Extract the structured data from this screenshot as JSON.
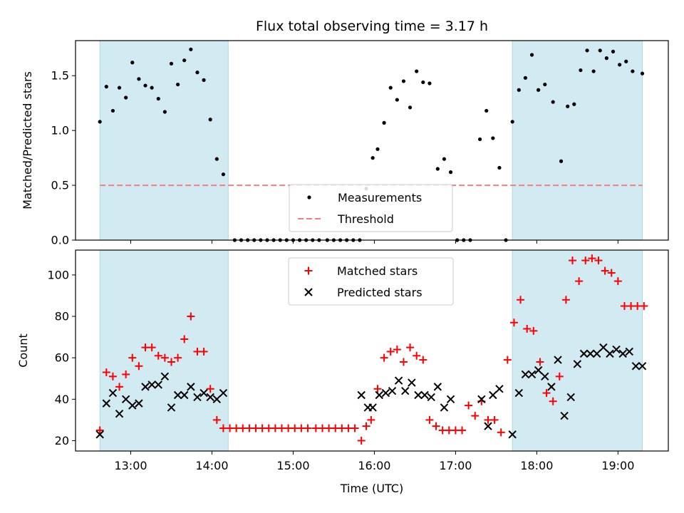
{
  "chart_data": {
    "title": "Flux total observing time = 3.17 h",
    "xlabel": "Time (UTC)",
    "x_unit": "hours UTC",
    "xlim": [
      12.32,
      19.62
    ],
    "x_ticks": [
      {
        "value": 13,
        "label": "13:00"
      },
      {
        "value": 14,
        "label": "14:00"
      },
      {
        "value": 15,
        "label": "15:00"
      },
      {
        "value": 16,
        "label": "16:00"
      },
      {
        "value": 17,
        "label": "17:00"
      },
      {
        "value": 18,
        "label": "18:00"
      },
      {
        "value": 19,
        "label": "19:00"
      }
    ],
    "shaded_intervals": [
      [
        12.62,
        14.2
      ],
      [
        17.7,
        19.3
      ]
    ],
    "shade_color": "#add8e6",
    "panels": [
      {
        "type": "scatter",
        "ylabel": "Matched/Predicted stars",
        "ylim": [
          0,
          1.82
        ],
        "yticks": [
          0.0,
          0.5,
          1.0,
          1.5
        ],
        "ytick_labels": [
          "0.0",
          "0.5",
          "1.0",
          "1.5"
        ],
        "legend_position": "lower center",
        "series": [
          {
            "name": "Measurements",
            "marker": "dot",
            "color": "#000000",
            "x": [
              12.62,
              12.7,
              12.78,
              12.86,
              12.94,
              13.02,
              13.1,
              13.18,
              13.26,
              13.34,
              13.42,
              13.5,
              13.58,
              13.66,
              13.74,
              13.82,
              13.9,
              13.98,
              14.06,
              14.14,
              14.28,
              14.36,
              14.44,
              14.52,
              14.6,
              14.68,
              14.76,
              14.84,
              14.92,
              15.0,
              15.08,
              15.16,
              15.24,
              15.32,
              15.42,
              15.5,
              15.58,
              15.66,
              15.74,
              15.82,
              15.9,
              15.98,
              16.04,
              16.12,
              16.2,
              16.28,
              16.36,
              16.44,
              16.52,
              16.6,
              16.68,
              16.78,
              16.86,
              16.94,
              17.02,
              17.1,
              17.18,
              17.3,
              17.38,
              17.46,
              17.54,
              17.62,
              17.7,
              17.78,
              17.86,
              17.94,
              18.02,
              18.1,
              18.2,
              18.3,
              18.38,
              18.46,
              18.54,
              18.62,
              18.7,
              18.78,
              18.86,
              18.94,
              19.02,
              19.1,
              19.18,
              19.3
            ],
            "y": [
              1.08,
              1.4,
              1.18,
              1.39,
              1.3,
              1.62,
              1.47,
              1.41,
              1.39,
              1.29,
              1.17,
              1.61,
              1.42,
              1.64,
              1.74,
              1.53,
              1.46,
              1.1,
              0.74,
              0.6,
              0,
              0,
              0,
              0,
              0,
              0,
              0,
              0,
              0,
              0,
              0,
              0,
              0,
              0,
              0,
              0,
              0,
              0,
              0,
              0,
              0.47,
              0.75,
              0.83,
              1.07,
              1.39,
              1.28,
              1.45,
              1.21,
              1.54,
              1.44,
              1.43,
              0.65,
              0.74,
              0.62,
              0,
              0,
              0,
              0.92,
              1.18,
              0.93,
              0.66,
              0,
              1.08,
              1.37,
              1.48,
              1.69,
              1.37,
              1.42,
              1.26,
              0.72,
              1.22,
              1.24,
              1.55,
              1.73,
              1.54,
              1.73,
              1.66,
              1.72,
              1.6,
              1.63,
              1.54,
              1.52
            ]
          },
          {
            "name": "Threshold",
            "marker": "dashed-line",
            "color": "#f08080",
            "value": 0.5
          }
        ]
      },
      {
        "type": "scatter",
        "ylabel": "Count",
        "ylim": [
          15,
          112
        ],
        "yticks": [
          20,
          40,
          60,
          80,
          100
        ],
        "ytick_labels": [
          "20",
          "40",
          "60",
          "80",
          "100"
        ],
        "legend_position": "upper center",
        "series": [
          {
            "name": "Matched stars",
            "marker": "plus",
            "color": "#ff0000",
            "x": [
              12.62,
              12.7,
              12.78,
              12.86,
              12.94,
              13.02,
              13.1,
              13.18,
              13.26,
              13.34,
              13.42,
              13.5,
              13.58,
              13.66,
              13.74,
              13.82,
              13.9,
              13.98,
              14.06,
              14.14,
              14.22,
              14.3,
              14.38,
              14.46,
              14.54,
              14.62,
              14.7,
              14.78,
              14.86,
              14.94,
              15.02,
              15.1,
              15.18,
              15.28,
              15.36,
              15.44,
              15.52,
              15.6,
              15.68,
              15.76,
              15.84,
              15.9,
              15.96,
              16.04,
              16.12,
              16.2,
              16.28,
              16.36,
              16.44,
              16.52,
              16.6,
              16.68,
              16.76,
              16.84,
              16.92,
              17.0,
              17.08,
              17.16,
              17.24,
              17.32,
              17.4,
              17.48,
              17.56,
              17.64,
              17.72,
              17.8,
              17.88,
              17.96,
              18.04,
              18.12,
              18.2,
              18.28,
              18.36,
              18.44,
              18.52,
              18.6,
              18.68,
              18.76,
              18.84,
              18.92,
              19.0,
              19.08,
              19.16,
              19.24,
              19.32
            ],
            "y": [
              25,
              53,
              51,
              46,
              52,
              60,
              56,
              65,
              65,
              61,
              60,
              58,
              60,
              69,
              80,
              63,
              63,
              45,
              30,
              26,
              26,
              26,
              26,
              26,
              26,
              26,
              26,
              26,
              26,
              26,
              26,
              26,
              26,
              26,
              26,
              26,
              26,
              26,
              26,
              26,
              20,
              27,
              30,
              45,
              60,
              63,
              64,
              58,
              65,
              61,
              59,
              30,
              27,
              25,
              25,
              25,
              25,
              37,
              32,
              39,
              30,
              30,
              24,
              59,
              77,
              88,
              74,
              73,
              58,
              43,
              39,
              51,
              88,
              107,
              97,
              107,
              108,
              107,
              102,
              101,
              97,
              85,
              85,
              85,
              85
            ],
            "note": ""
          },
          {
            "name": "Predicted stars",
            "marker": "x",
            "color": "#000000",
            "x": [
              12.62,
              12.7,
              12.78,
              12.86,
              12.94,
              13.02,
              13.1,
              13.18,
              13.26,
              13.34,
              13.42,
              13.5,
              13.58,
              13.66,
              13.74,
              13.82,
              13.9,
              13.98,
              14.06,
              14.14,
              15.84,
              15.92,
              15.98,
              16.06,
              16.14,
              16.22,
              16.3,
              16.38,
              16.46,
              16.54,
              16.62,
              16.7,
              16.78,
              16.86,
              16.94,
              17.32,
              17.4,
              17.46,
              17.54,
              17.7,
              17.78,
              17.86,
              17.94,
              18.02,
              18.1,
              18.18,
              18.26,
              18.34,
              18.42,
              18.5,
              18.58,
              18.66,
              18.74,
              18.82,
              18.9,
              18.98,
              19.06,
              19.14,
              19.22,
              19.3
            ],
            "y": [
              23,
              38,
              43,
              33,
              40,
              37,
              38,
              46,
              47,
              47,
              51,
              36,
              42,
              42,
              46,
              41,
              43,
              41,
              40,
              43,
              42,
              36,
              36,
              42,
              43,
              44,
              49,
              44,
              48,
              42,
              42,
              41,
              46,
              36,
              40,
              40,
              27,
              42,
              45,
              23,
              43,
              52,
              52,
              54,
              51,
              46,
              59,
              32,
              41,
              57,
              62,
              62,
              62,
              65,
              62,
              64,
              62,
              63,
              56,
              56
            ]
          }
        ]
      }
    ]
  }
}
